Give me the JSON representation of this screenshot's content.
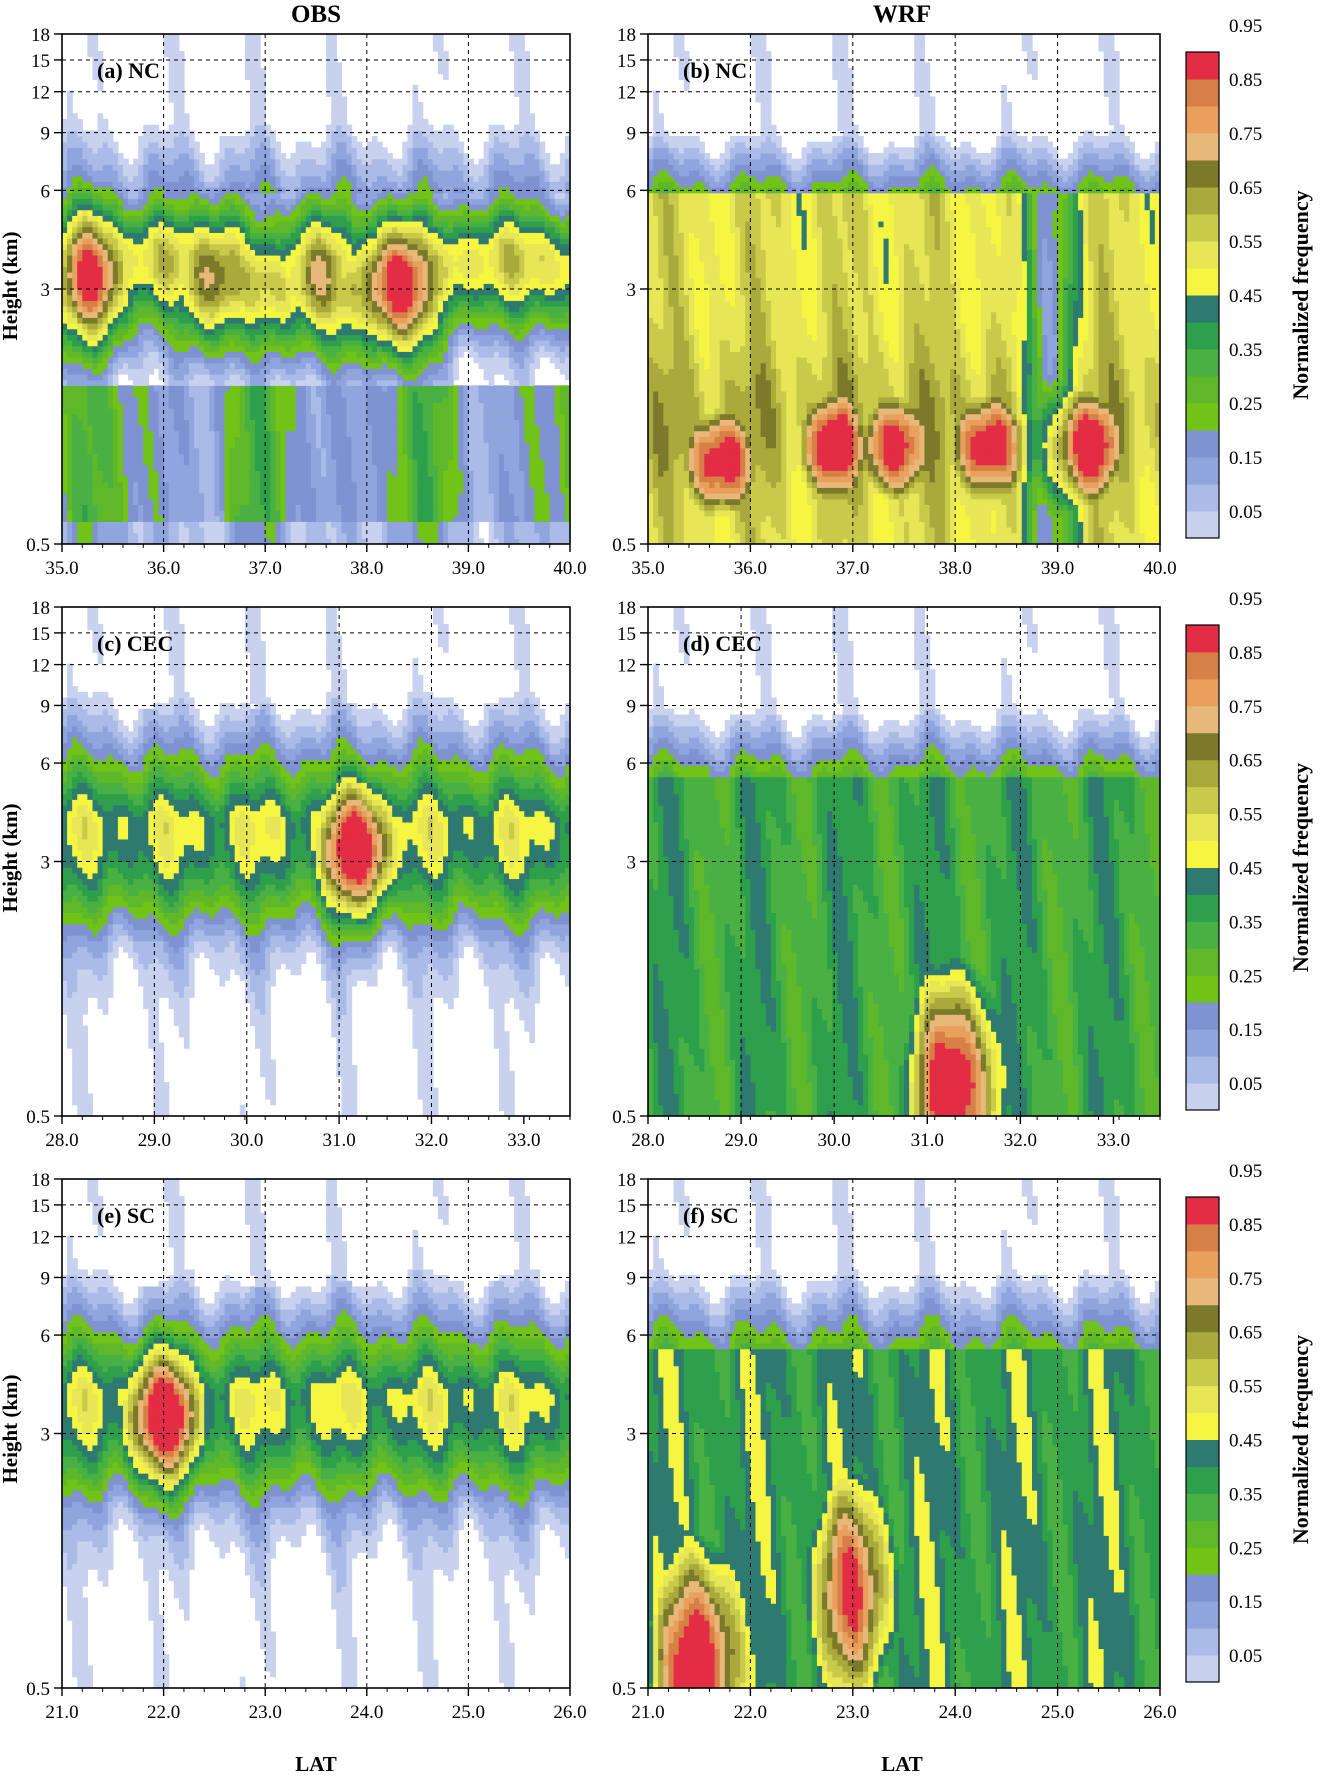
{
  "figure": {
    "column_titles": [
      "OBS",
      "WRF"
    ],
    "xlabel": "LAT",
    "ylabel": "Height (km)",
    "colorbar_title": "Normalized frequency"
  },
  "colorbar": {
    "levels": [
      "0.05",
      "0.1",
      "0.15",
      "0.2",
      "0.25",
      "0.3",
      "0.35",
      "0.4",
      "0.45",
      "0.5",
      "0.55",
      "0.6",
      "0.65",
      "0.7",
      "0.75",
      "0.8",
      "0.85",
      "0.9",
      "0.95"
    ],
    "tick_labels": [
      "0.05",
      "0.15",
      "0.25",
      "0.35",
      "0.45",
      "0.55",
      "0.65",
      "0.75",
      "0.85",
      "0.95"
    ],
    "colors": [
      "#c8d2ee",
      "#a9bbe6",
      "#90a5dd",
      "#7f92d2",
      "#72c318",
      "#5eb82a",
      "#49b043",
      "#2e9f4a",
      "#2f7a70",
      "#f5f542",
      "#e6e656",
      "#c9c94a",
      "#a9a93c",
      "#7a7a2a",
      "#e8b87a",
      "#e8a05c",
      "#d67f46",
      "#e32d45"
    ]
  },
  "chart_data": [
    {
      "type": "heatmap",
      "label": "(a) NC",
      "column": "OBS",
      "xlim": [
        35.0,
        40.0
      ],
      "ylim": [
        0.5,
        18
      ],
      "yscale": "log",
      "x_ticks": [
        "35.0",
        "36.0",
        "37.0",
        "38.0",
        "39.0",
        "40.0"
      ],
      "y_ticks": [
        "0.5",
        "3",
        "6",
        "9",
        "12",
        "15",
        "18"
      ],
      "grid": true,
      "profile": {
        "kind": "band",
        "peak_height": 3.3,
        "top": 10.0,
        "width": 0.25,
        "base_level": 0.6,
        "hotspots": [
          {
            "x": 35.3,
            "y": 3.3,
            "value": 0.88
          },
          {
            "x": 38.3,
            "y": 3.1,
            "value": 0.97
          },
          {
            "x": 36.5,
            "y": 3.3,
            "value": 0.75
          },
          {
            "x": 37.5,
            "y": 3.3,
            "value": 0.72
          }
        ]
      }
    },
    {
      "type": "heatmap",
      "label": "(b) NC",
      "column": "WRF",
      "xlim": [
        35.0,
        40.0
      ],
      "ylim": [
        0.5,
        18
      ],
      "yscale": "log",
      "x_ticks": [
        "35.0",
        "36.0",
        "37.0",
        "38.0",
        "39.0",
        "40.0"
      ],
      "y_ticks": [
        "0.5",
        "3",
        "6",
        "9",
        "12",
        "15",
        "18"
      ],
      "grid": true,
      "profile": {
        "kind": "block",
        "peak_height": 1.2,
        "top": 9.2,
        "plateau_top": 5.8,
        "base_level": 0.58,
        "gap_x": 38.9,
        "hotspots": [
          {
            "x": 35.7,
            "y": 0.9,
            "value": 0.97
          },
          {
            "x": 36.8,
            "y": 1.0,
            "value": 0.95
          },
          {
            "x": 37.4,
            "y": 1.0,
            "value": 0.95
          },
          {
            "x": 38.3,
            "y": 1.0,
            "value": 0.96
          },
          {
            "x": 39.3,
            "y": 1.0,
            "value": 0.95
          }
        ]
      }
    },
    {
      "type": "heatmap",
      "label": "(c) CEC",
      "column": "OBS",
      "xlim": [
        28.0,
        33.5
      ],
      "ylim": [
        0.5,
        18
      ],
      "yscale": "log",
      "x_ticks": [
        "28.0",
        "29.0",
        "30.0",
        "31.0",
        "32.0",
        "33.0"
      ],
      "y_ticks": [
        "0.5",
        "3",
        "6",
        "9",
        "12",
        "15",
        "18"
      ],
      "grid": true,
      "profile": {
        "kind": "blob",
        "peak_height": 3.3,
        "top": 9.5,
        "width": 0.22,
        "base_level": 0.35,
        "hotspots": [
          {
            "x": 31.2,
            "y": 3.3,
            "value": 0.98
          }
        ]
      }
    },
    {
      "type": "heatmap",
      "label": "(d) CEC",
      "column": "WRF",
      "xlim": [
        28.0,
        33.5
      ],
      "ylim": [
        0.5,
        18
      ],
      "yscale": "log",
      "x_ticks": [
        "28.0",
        "29.0",
        "30.0",
        "31.0",
        "32.0",
        "33.0"
      ],
      "y_ticks": [
        "0.5",
        "3",
        "6",
        "9",
        "12",
        "15",
        "18"
      ],
      "grid": true,
      "profile": {
        "kind": "column",
        "peak_height": 0.6,
        "top": 9.0,
        "plateau_top": 5.5,
        "base_level": 0.4,
        "hotspots": [
          {
            "x": 31.3,
            "y": 0.6,
            "value": 0.97
          }
        ]
      }
    },
    {
      "type": "heatmap",
      "label": "(e) SC",
      "column": "OBS",
      "xlim": [
        21.0,
        26.0
      ],
      "ylim": [
        0.5,
        18
      ],
      "yscale": "log",
      "x_ticks": [
        "21.0",
        "22.0",
        "23.0",
        "24.0",
        "25.0",
        "26.0"
      ],
      "y_ticks": [
        "0.5",
        "3",
        "6",
        "9",
        "12",
        "15",
        "18"
      ],
      "grid": true,
      "profile": {
        "kind": "blob",
        "peak_height": 3.3,
        "top": 9.0,
        "width": 0.24,
        "base_level": 0.35,
        "hotspots": [
          {
            "x": 22.0,
            "y": 3.4,
            "value": 0.98
          }
        ]
      }
    },
    {
      "type": "heatmap",
      "label": "(f) SC",
      "column": "WRF",
      "xlim": [
        21.0,
        26.0
      ],
      "ylim": [
        0.5,
        18
      ],
      "yscale": "log",
      "x_ticks": [
        "21.0",
        "22.0",
        "23.0",
        "24.0",
        "25.0",
        "26.0"
      ],
      "y_ticks": [
        "0.5",
        "3",
        "6",
        "9",
        "12",
        "15",
        "18"
      ],
      "grid": true,
      "profile": {
        "kind": "column",
        "peak_height": 0.6,
        "top": 9.6,
        "plateau_top": 5.5,
        "base_level": 0.45,
        "hotspots": [
          {
            "x": 21.5,
            "y": 0.6,
            "value": 0.97
          },
          {
            "x": 23.0,
            "y": 1.0,
            "value": 0.85
          }
        ]
      }
    }
  ]
}
